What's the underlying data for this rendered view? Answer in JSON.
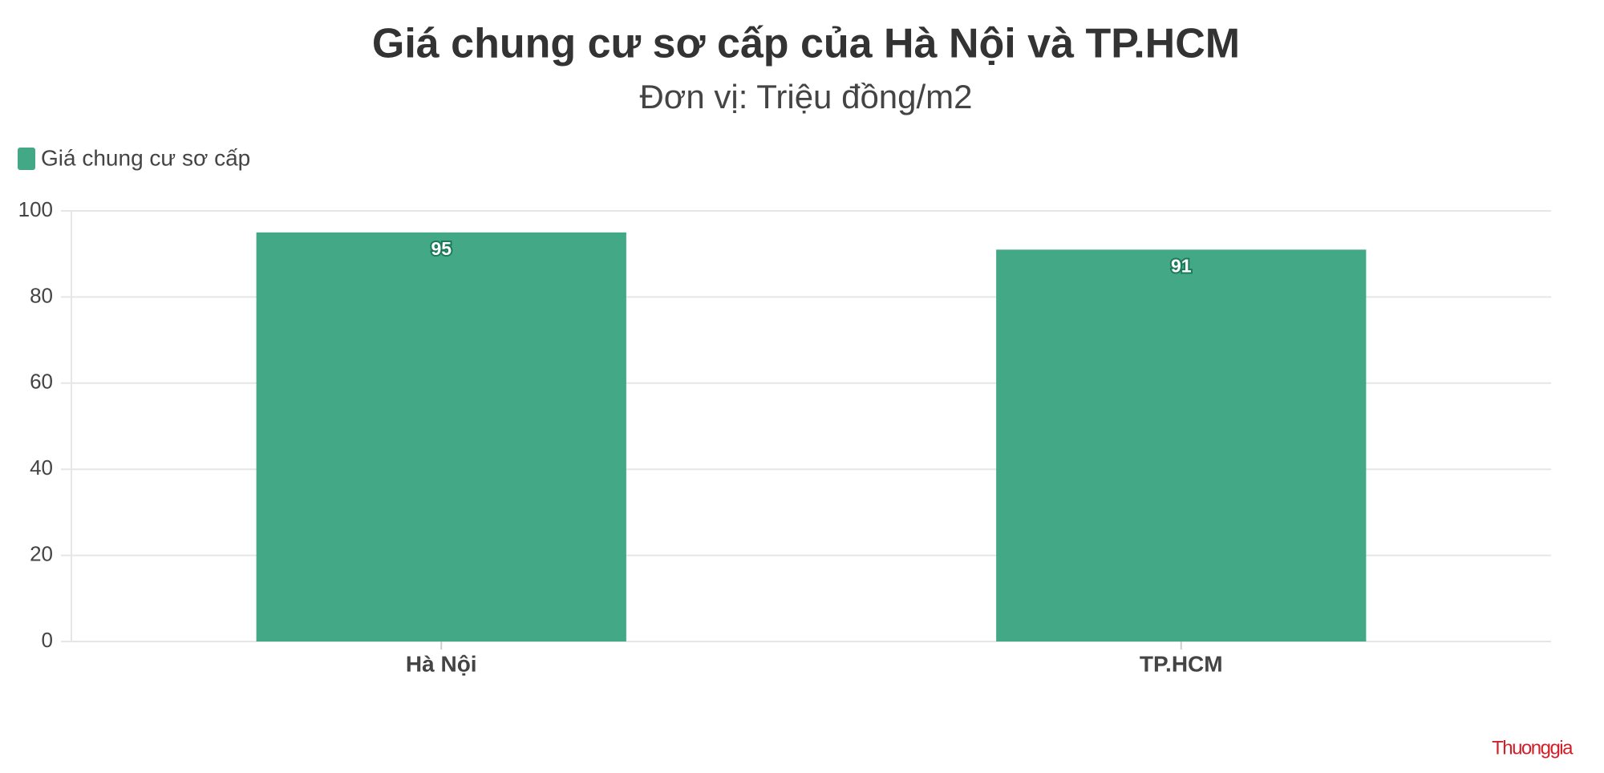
{
  "chart_data": {
    "type": "bar",
    "title": "Giá chung cư sơ cấp của Hà Nội và TP.HCM",
    "subtitle": "Đơn vị: Triệu đồng/m2",
    "categories": [
      "Hà Nội",
      "TP.HCM"
    ],
    "series": [
      {
        "name": "Giá chung cư sơ cấp",
        "color": "#42a886",
        "values": [
          95,
          91
        ]
      }
    ],
    "ylim": [
      0,
      100
    ],
    "yticks": [
      0,
      20,
      40,
      60,
      80,
      100
    ],
    "grid": true,
    "legend": "top-left",
    "source": "Thuonggia"
  }
}
